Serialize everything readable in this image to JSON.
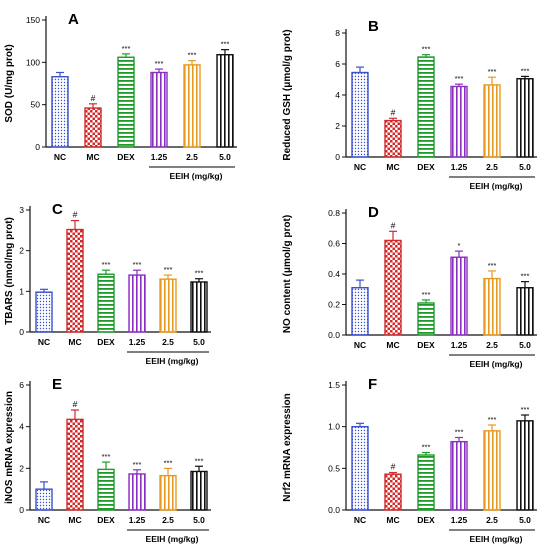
{
  "colors": {
    "NC": "#3a4fd0",
    "MC": "#d02a2a",
    "DEX": "#1f9a2a",
    "1.25": "#8a2fc0",
    "2.5": "#e89a20",
    "5.0": "#111111",
    "axis": "#111111"
  },
  "patterns": {
    "NC": "dots",
    "MC": "checker",
    "DEX": "hlines",
    "1.25": "vlines",
    "2.5": "vlines",
    "5.0": "vlines"
  },
  "chart_data": [
    {
      "panel": "A",
      "type": "bar",
      "categories": [
        "NC",
        "MC",
        "DEX",
        "1.25",
        "2.5",
        "5.0"
      ],
      "values": [
        83,
        46,
        106,
        88,
        97,
        109
      ],
      "errors": [
        5,
        5,
        4,
        4,
        5,
        6
      ],
      "significance": [
        "",
        "#",
        "***",
        "***",
        "***",
        "***"
      ],
      "ylabel": "SOD (U/mg prot)",
      "yticks": [
        "0",
        "50",
        "100",
        "150"
      ],
      "ylim": [
        0,
        150
      ],
      "group_label": "EEIH (mg/kg)"
    },
    {
      "panel": "B",
      "type": "bar",
      "categories": [
        "NC",
        "MC",
        "DEX",
        "1.25",
        "2.5",
        "5.0"
      ],
      "values": [
        5.45,
        2.35,
        6.45,
        4.55,
        4.65,
        5.05
      ],
      "errors": [
        0.35,
        0.15,
        0.15,
        0.15,
        0.5,
        0.15
      ],
      "significance": [
        "",
        "#",
        "***",
        "***",
        "***",
        "***"
      ],
      "ylabel": "Reduced GSH (μmol/g prot)",
      "yticks": [
        "0",
        "2",
        "4",
        "6",
        "8"
      ],
      "ylim": [
        0,
        8
      ],
      "group_label": "EEIH (mg/kg)"
    },
    {
      "panel": "C",
      "type": "bar",
      "categories": [
        "NC",
        "MC",
        "DEX",
        "1.25",
        "2.5",
        "5.0"
      ],
      "values": [
        0.98,
        2.52,
        1.42,
        1.4,
        1.3,
        1.23
      ],
      "errors": [
        0.07,
        0.22,
        0.1,
        0.12,
        0.1,
        0.08
      ],
      "significance": [
        "",
        "#",
        "***",
        "***",
        "***",
        "***"
      ],
      "ylabel": "TBARS (nmol/mg prot)",
      "yticks": [
        "0",
        "1",
        "2",
        "3"
      ],
      "ylim": [
        0,
        3
      ],
      "group_label": "EEIH (mg/kg)"
    },
    {
      "panel": "D",
      "type": "bar",
      "categories": [
        "NC",
        "MC",
        "DEX",
        "1.25",
        "2.5",
        "5.0"
      ],
      "values": [
        0.31,
        0.62,
        0.21,
        0.51,
        0.37,
        0.31
      ],
      "errors": [
        0.05,
        0.06,
        0.02,
        0.04,
        0.05,
        0.04
      ],
      "significance": [
        "",
        "#",
        "***",
        "*",
        "***",
        "***"
      ],
      "ylabel": "NO content (μmol/g prot)",
      "yticks": [
        "0.0",
        "0.2",
        "0.4",
        "0.6",
        "0.8"
      ],
      "ylim": [
        0,
        0.8
      ],
      "group_label": "EEIH (mg/kg)"
    },
    {
      "panel": "E",
      "type": "bar",
      "categories": [
        "NC",
        "MC",
        "DEX",
        "1.25",
        "2.5",
        "5.0"
      ],
      "values": [
        1.0,
        4.35,
        1.95,
        1.73,
        1.65,
        1.85
      ],
      "errors": [
        0.35,
        0.45,
        0.35,
        0.2,
        0.35,
        0.25
      ],
      "significance": [
        "",
        "#",
        "***",
        "***",
        "***",
        "***"
      ],
      "ylabel": "iNOS mRNA expression",
      "yticks": [
        "0",
        "2",
        "4",
        "6"
      ],
      "ylim": [
        0,
        6
      ],
      "group_label": "EEIH (mg/kg)"
    },
    {
      "panel": "F",
      "type": "bar",
      "categories": [
        "NC",
        "MC",
        "DEX",
        "1.25",
        "2.5",
        "5.0"
      ],
      "values": [
        1.0,
        0.43,
        0.66,
        0.82,
        0.95,
        1.07
      ],
      "errors": [
        0.04,
        0.02,
        0.03,
        0.05,
        0.07,
        0.07
      ],
      "significance": [
        "",
        "#",
        "***",
        "***",
        "***",
        "***"
      ],
      "ylabel": "Nrf2 mRNA expression",
      "yticks": [
        "0.0",
        "0.5",
        "1.0",
        "1.5"
      ],
      "ylim": [
        0,
        1.5
      ],
      "group_label": "EEIH (mg/kg)"
    }
  ]
}
